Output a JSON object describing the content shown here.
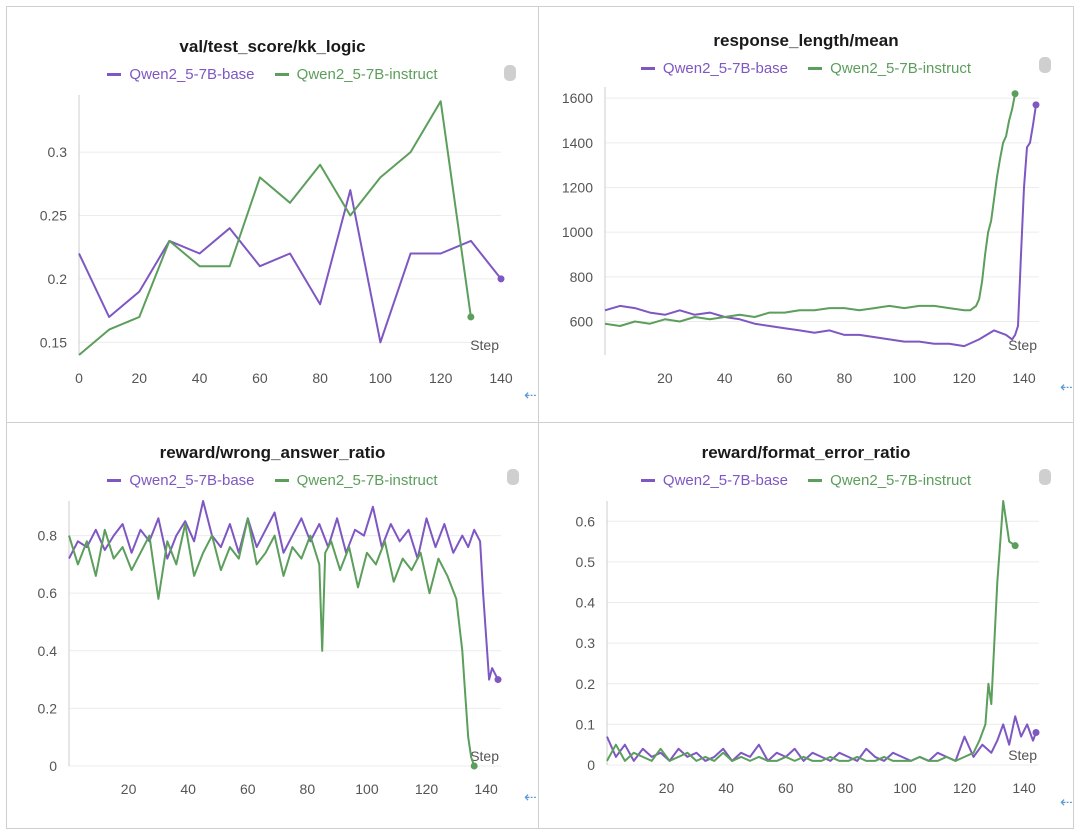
{
  "colors": {
    "base": "#7e57c2",
    "instruct": "#5c9e5c",
    "grid": "#ececec",
    "axis": "#cccccc",
    "tick": "#555555"
  },
  "icons": {
    "menu": "panel-menu-icon",
    "side": "side-expand-icon"
  },
  "chart_data": [
    {
      "type": "line",
      "title": "val/test_score/kk_logic",
      "xlabel": "Step",
      "xlim": [
        0,
        140
      ],
      "ylim": [
        0.14,
        0.345
      ],
      "xticks": [
        0,
        20,
        40,
        60,
        80,
        100,
        120,
        140
      ],
      "yticks": [
        0.15,
        0.2,
        0.25,
        0.3
      ],
      "yticklabels": [
        "0.15",
        "0.2",
        "0.25",
        "0.3"
      ],
      "series": [
        {
          "name": "Qwen2_5-7B-base",
          "color_key": "base",
          "x": [
            0,
            10,
            20,
            30,
            40,
            50,
            60,
            70,
            80,
            90,
            100,
            110,
            120,
            130,
            140
          ],
          "y": [
            0.22,
            0.17,
            0.19,
            0.23,
            0.22,
            0.24,
            0.21,
            0.22,
            0.18,
            0.27,
            0.15,
            0.22,
            0.22,
            0.23,
            0.2
          ]
        },
        {
          "name": "Qwen2_5-7B-instruct",
          "color_key": "instruct",
          "x": [
            0,
            10,
            20,
            30,
            40,
            50,
            60,
            70,
            80,
            90,
            100,
            110,
            120,
            130
          ],
          "y": [
            0.14,
            0.16,
            0.17,
            0.23,
            0.21,
            0.21,
            0.28,
            0.26,
            0.29,
            0.25,
            0.28,
            0.3,
            0.34,
            0.17
          ]
        }
      ]
    },
    {
      "type": "line",
      "title": "response_length/mean",
      "xlabel": "Step",
      "xlim": [
        0,
        145
      ],
      "ylim": [
        450,
        1650
      ],
      "xticks": [
        20,
        40,
        60,
        80,
        100,
        120,
        140
      ],
      "yticks": [
        600,
        800,
        1000,
        1200,
        1400,
        1600
      ],
      "yticklabels": [
        "600",
        "800",
        "1000",
        "1200",
        "1400",
        "1600"
      ],
      "series": [
        {
          "name": "Qwen2_5-7B-base",
          "color_key": "base",
          "x": [
            0,
            5,
            10,
            15,
            20,
            25,
            30,
            35,
            40,
            45,
            50,
            55,
            60,
            65,
            70,
            75,
            80,
            85,
            90,
            95,
            100,
            105,
            110,
            115,
            120,
            125,
            130,
            134,
            136,
            137,
            138,
            139,
            140,
            141,
            142,
            143,
            144
          ],
          "y": [
            650,
            670,
            660,
            640,
            630,
            650,
            630,
            640,
            620,
            610,
            590,
            580,
            570,
            560,
            550,
            560,
            540,
            540,
            530,
            520,
            510,
            510,
            500,
            500,
            490,
            520,
            560,
            540,
            520,
            540,
            580,
            900,
            1200,
            1380,
            1400,
            1480,
            1570
          ]
        },
        {
          "name": "Qwen2_5-7B-instruct",
          "color_key": "instruct",
          "x": [
            0,
            5,
            10,
            15,
            20,
            25,
            30,
            35,
            40,
            45,
            50,
            55,
            60,
            65,
            70,
            75,
            80,
            85,
            90,
            95,
            100,
            105,
            110,
            115,
            120,
            122,
            124,
            125,
            126,
            127,
            128,
            129,
            130,
            131,
            132,
            133,
            134,
            135,
            136,
            137
          ],
          "y": [
            590,
            580,
            600,
            590,
            610,
            600,
            620,
            610,
            620,
            630,
            620,
            640,
            640,
            650,
            650,
            660,
            660,
            650,
            660,
            670,
            660,
            670,
            670,
            660,
            650,
            650,
            670,
            700,
            780,
            900,
            1000,
            1050,
            1150,
            1250,
            1330,
            1400,
            1430,
            1500,
            1550,
            1620
          ]
        }
      ]
    },
    {
      "type": "line",
      "title": "reward/wrong_answer_ratio",
      "xlabel": "Step",
      "xlim": [
        0,
        145
      ],
      "ylim": [
        0,
        0.92
      ],
      "xticks": [
        20,
        40,
        60,
        80,
        100,
        120,
        140
      ],
      "yticks": [
        0,
        0.2,
        0.4,
        0.6,
        0.8
      ],
      "yticklabels": [
        "0",
        "0.2",
        "0.4",
        "0.6",
        "0.8"
      ],
      "series": [
        {
          "name": "Qwen2_5-7B-base",
          "color_key": "base",
          "x": [
            0,
            3,
            6,
            9,
            12,
            15,
            18,
            21,
            24,
            27,
            30,
            33,
            36,
            39,
            42,
            45,
            48,
            51,
            54,
            57,
            60,
            63,
            66,
            69,
            72,
            75,
            78,
            81,
            84,
            87,
            90,
            93,
            96,
            99,
            102,
            105,
            108,
            111,
            114,
            117,
            120,
            123,
            126,
            129,
            132,
            134,
            136,
            138,
            139,
            140,
            141,
            142,
            144
          ],
          "y": [
            0.72,
            0.78,
            0.76,
            0.82,
            0.75,
            0.8,
            0.84,
            0.74,
            0.82,
            0.78,
            0.86,
            0.72,
            0.8,
            0.85,
            0.78,
            0.92,
            0.8,
            0.76,
            0.84,
            0.74,
            0.86,
            0.76,
            0.82,
            0.88,
            0.74,
            0.8,
            0.86,
            0.78,
            0.84,
            0.76,
            0.86,
            0.74,
            0.82,
            0.8,
            0.9,
            0.76,
            0.84,
            0.78,
            0.82,
            0.72,
            0.86,
            0.76,
            0.84,
            0.74,
            0.8,
            0.76,
            0.82,
            0.78,
            0.6,
            0.45,
            0.3,
            0.34,
            0.3
          ]
        },
        {
          "name": "Qwen2_5-7B-instruct",
          "color_key": "instruct",
          "x": [
            0,
            3,
            6,
            9,
            12,
            15,
            18,
            21,
            24,
            27,
            30,
            33,
            36,
            39,
            42,
            45,
            48,
            51,
            54,
            57,
            60,
            63,
            66,
            69,
            72,
            75,
            78,
            81,
            84,
            85,
            86,
            88,
            91,
            94,
            97,
            100,
            103,
            106,
            109,
            112,
            115,
            118,
            121,
            124,
            127,
            130,
            132,
            133,
            134,
            135,
            136
          ],
          "y": [
            0.8,
            0.7,
            0.78,
            0.66,
            0.82,
            0.72,
            0.76,
            0.68,
            0.74,
            0.8,
            0.58,
            0.78,
            0.7,
            0.84,
            0.66,
            0.74,
            0.8,
            0.68,
            0.76,
            0.72,
            0.86,
            0.7,
            0.74,
            0.8,
            0.66,
            0.76,
            0.72,
            0.8,
            0.7,
            0.4,
            0.74,
            0.78,
            0.68,
            0.76,
            0.62,
            0.74,
            0.7,
            0.78,
            0.64,
            0.72,
            0.68,
            0.74,
            0.6,
            0.72,
            0.66,
            0.58,
            0.4,
            0.25,
            0.1,
            0.03,
            0.0
          ]
        }
      ]
    },
    {
      "type": "line",
      "title": "reward/format_error_ratio",
      "xlabel": "Step",
      "xlim": [
        0,
        145
      ],
      "ylim": [
        0,
        0.65
      ],
      "xticks": [
        20,
        40,
        60,
        80,
        100,
        120,
        140
      ],
      "yticks": [
        0,
        0.1,
        0.2,
        0.3,
        0.4,
        0.5,
        0.6
      ],
      "yticklabels": [
        "0",
        "0.1",
        "0.2",
        "0.3",
        "0.4",
        "0.5",
        "0.6"
      ],
      "series": [
        {
          "name": "Qwen2_5-7B-base",
          "color_key": "base",
          "x": [
            0,
            3,
            6,
            9,
            12,
            15,
            18,
            21,
            24,
            27,
            30,
            33,
            36,
            39,
            42,
            45,
            48,
            51,
            54,
            57,
            60,
            63,
            66,
            69,
            72,
            75,
            78,
            81,
            84,
            87,
            90,
            93,
            96,
            99,
            102,
            105,
            108,
            111,
            114,
            117,
            120,
            123,
            126,
            129,
            131,
            133,
            135,
            137,
            139,
            141,
            143,
            144
          ],
          "y": [
            0.07,
            0.02,
            0.05,
            0.01,
            0.04,
            0.02,
            0.03,
            0.01,
            0.04,
            0.02,
            0.03,
            0.01,
            0.02,
            0.04,
            0.01,
            0.03,
            0.02,
            0.05,
            0.01,
            0.03,
            0.02,
            0.04,
            0.01,
            0.03,
            0.02,
            0.01,
            0.03,
            0.02,
            0.01,
            0.04,
            0.02,
            0.01,
            0.03,
            0.02,
            0.01,
            0.02,
            0.01,
            0.03,
            0.02,
            0.01,
            0.07,
            0.02,
            0.05,
            0.03,
            0.06,
            0.1,
            0.05,
            0.12,
            0.07,
            0.1,
            0.06,
            0.08
          ]
        },
        {
          "name": "Qwen2_5-7B-instruct",
          "color_key": "instruct",
          "x": [
            0,
            3,
            6,
            9,
            12,
            15,
            18,
            21,
            24,
            27,
            30,
            33,
            36,
            39,
            42,
            45,
            48,
            51,
            54,
            57,
            60,
            63,
            66,
            69,
            72,
            75,
            78,
            81,
            84,
            87,
            90,
            93,
            96,
            99,
            102,
            105,
            108,
            111,
            114,
            117,
            120,
            123,
            125,
            127,
            128,
            129,
            130,
            131,
            132,
            133,
            134,
            135,
            137
          ],
          "y": [
            0.01,
            0.05,
            0.01,
            0.03,
            0.02,
            0.01,
            0.04,
            0.01,
            0.02,
            0.03,
            0.01,
            0.02,
            0.01,
            0.03,
            0.01,
            0.02,
            0.01,
            0.02,
            0.01,
            0.01,
            0.02,
            0.01,
            0.02,
            0.01,
            0.01,
            0.02,
            0.01,
            0.01,
            0.02,
            0.01,
            0.01,
            0.02,
            0.01,
            0.01,
            0.01,
            0.02,
            0.01,
            0.01,
            0.02,
            0.01,
            0.02,
            0.03,
            0.06,
            0.1,
            0.2,
            0.15,
            0.3,
            0.45,
            0.55,
            0.65,
            0.6,
            0.55,
            0.54
          ]
        }
      ]
    }
  ]
}
